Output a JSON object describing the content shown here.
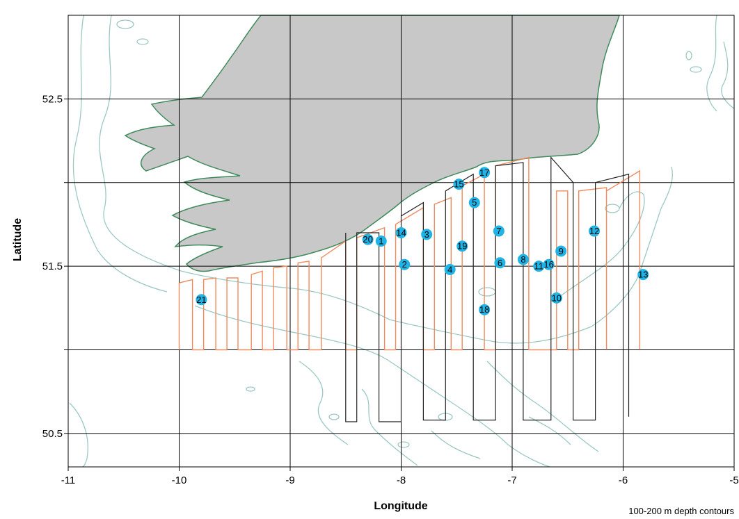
{
  "chart_data": {
    "type": "map",
    "xlabel": "Longitude",
    "ylabel": "Latitude",
    "xlim": [
      -11,
      -5
    ],
    "ylim": [
      50.3,
      53.0
    ],
    "x_ticks": [
      -11,
      -10,
      -9,
      -8,
      -7,
      -6,
      -5
    ],
    "x_tick_labels": [
      "-11",
      "-10",
      "-9",
      "-8",
      "-7",
      "-6",
      "-5"
    ],
    "y_ticks": [
      50.5,
      51.0,
      51.5,
      52.0,
      52.5
    ],
    "y_tick_labels": [
      "50.5",
      "",
      "51.5",
      "",
      "52.5"
    ],
    "grid": true,
    "note": "100-200 m depth contours",
    "colors": {
      "land": "#c8c8c8",
      "coast": "#3f8a5c",
      "contour": "#9cc8c4",
      "track_orange": "#f08a5d",
      "track_black": "#222222",
      "station": "#1fb3e6"
    },
    "stations": [
      {
        "id": "1",
        "lon": -8.18,
        "lat": 51.65
      },
      {
        "id": "2",
        "lon": -7.97,
        "lat": 51.51
      },
      {
        "id": "3",
        "lon": -7.77,
        "lat": 51.69
      },
      {
        "id": "4",
        "lon": -7.56,
        "lat": 51.48
      },
      {
        "id": "5",
        "lon": -7.34,
        "lat": 51.88
      },
      {
        "id": "6",
        "lon": -7.11,
        "lat": 51.52
      },
      {
        "id": "7",
        "lon": -7.12,
        "lat": 51.71
      },
      {
        "id": "8",
        "lon": -6.9,
        "lat": 51.54
      },
      {
        "id": "9",
        "lon": -6.56,
        "lat": 51.59
      },
      {
        "id": "10",
        "lon": -6.6,
        "lat": 51.31
      },
      {
        "id": "11",
        "lon": -6.76,
        "lat": 51.5
      },
      {
        "id": "12",
        "lon": -6.26,
        "lat": 51.71
      },
      {
        "id": "13",
        "lon": -5.82,
        "lat": 51.45
      },
      {
        "id": "14",
        "lon": -8.0,
        "lat": 51.7
      },
      {
        "id": "15",
        "lon": -7.48,
        "lat": 51.99
      },
      {
        "id": "16",
        "lon": -6.67,
        "lat": 51.51
      },
      {
        "id": "17",
        "lon": -7.25,
        "lat": 52.06
      },
      {
        "id": "18",
        "lon": -7.25,
        "lat": 51.24
      },
      {
        "id": "19",
        "lon": -7.45,
        "lat": 51.62
      },
      {
        "id": "20",
        "lon": -8.3,
        "lat": 51.66
      },
      {
        "id": "21",
        "lon": -9.8,
        "lat": 51.3
      }
    ],
    "tracks": [
      {
        "color": "orange",
        "points": [
          [
            -10,
            51.0
          ],
          [
            -10,
            51.4
          ],
          [
            -9.88,
            51.42
          ],
          [
            -9.88,
            51.0
          ],
          [
            -9.78,
            51.0
          ],
          [
            -9.78,
            51.42
          ],
          [
            -9.67,
            51.43
          ],
          [
            -9.67,
            51.0
          ],
          [
            -9.57,
            51.0
          ],
          [
            -9.57,
            51.43
          ],
          [
            -9.47,
            51.43
          ],
          [
            -9.47,
            51.0
          ],
          [
            -9.35,
            51.0
          ],
          [
            -9.35,
            51.45
          ],
          [
            -9.25,
            51.47
          ],
          [
            -9.25,
            51.0
          ],
          [
            -9.15,
            51.0
          ],
          [
            -9.15,
            51.49
          ],
          [
            -9.03,
            51.5
          ],
          [
            -9.03,
            51.0
          ],
          [
            -8.93,
            51.0
          ],
          [
            -8.93,
            51.52
          ],
          [
            -8.83,
            51.53
          ],
          [
            -8.83,
            51.0
          ],
          [
            -8.72,
            51.0
          ],
          [
            -8.72,
            51.55
          ],
          [
            -8.5,
            51.65
          ],
          [
            -8.5,
            51.0
          ],
          [
            -8.4,
            51.0
          ],
          [
            -8.4,
            51.67
          ],
          [
            -8.15,
            51.73
          ],
          [
            -8.15,
            51.0
          ],
          [
            -8.05,
            51.0
          ],
          [
            -8.05,
            51.75
          ],
          [
            -7.8,
            51.85
          ],
          [
            -7.8,
            51.0
          ],
          [
            -7.7,
            51.0
          ],
          [
            -7.7,
            51.87
          ],
          [
            -7.55,
            51.91
          ],
          [
            -7.55,
            51.0
          ],
          [
            -7.45,
            51.0
          ],
          [
            -7.45,
            51.98
          ],
          [
            -7.25,
            52.05
          ],
          [
            -7.25,
            51.0
          ],
          [
            -7.15,
            51.0
          ],
          [
            -7.15,
            52.1
          ],
          [
            -6.85,
            52.15
          ],
          [
            -6.85,
            51.0
          ],
          [
            -6.6,
            51.0
          ],
          [
            -6.6,
            51.95
          ],
          [
            -6.5,
            51.95
          ],
          [
            -6.5,
            51.0
          ],
          [
            -6.4,
            51.0
          ],
          [
            -6.4,
            51.95
          ],
          [
            -6.15,
            51.97
          ],
          [
            -6.15,
            51.0
          ],
          [
            -6.15,
            51.95
          ],
          [
            -5.85,
            52.07
          ],
          [
            -5.85,
            51.0
          ]
        ]
      },
      {
        "color": "black",
        "points": [
          [
            -8.5,
            51.7
          ],
          [
            -8.5,
            50.57
          ],
          [
            -8.4,
            50.57
          ],
          [
            -8.4,
            51.7
          ],
          [
            -8.2,
            51.7
          ],
          [
            -8.2,
            50.57
          ],
          [
            -8.0,
            50.57
          ],
          [
            -8.0,
            51.8
          ],
          [
            -7.8,
            51.88
          ],
          [
            -7.8,
            50.58
          ],
          [
            -7.6,
            50.58
          ],
          [
            -7.6,
            51.95
          ],
          [
            -7.35,
            52.05
          ],
          [
            -7.35,
            50.58
          ],
          [
            -7.15,
            50.58
          ],
          [
            -7.15,
            52.1
          ],
          [
            -6.9,
            52.12
          ],
          [
            -6.9,
            50.58
          ],
          [
            -6.65,
            50.58
          ],
          [
            -6.65,
            52.15
          ],
          [
            -6.45,
            52.0
          ],
          [
            -6.45,
            50.58
          ],
          [
            -6.25,
            50.58
          ],
          [
            -6.25,
            52.0
          ],
          [
            -5.95,
            52.05
          ],
          [
            -5.95,
            50.6
          ]
        ]
      }
    ]
  }
}
